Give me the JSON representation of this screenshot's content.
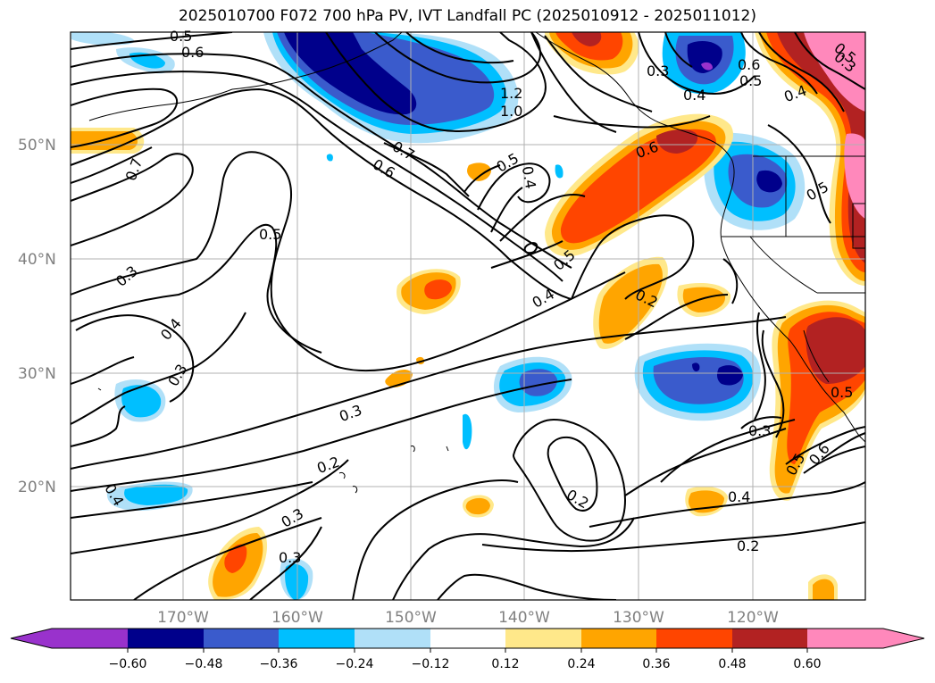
{
  "title": "2025010700 F072 700 hPa PV, IVT Landfall PC (2025010912 - 2025011012)",
  "map": {
    "lat_labels": [
      "50°N",
      "40°N",
      "30°N",
      "20°N"
    ],
    "lon_labels": [
      "170°W",
      "160°W",
      "150°W",
      "140°W",
      "130°W",
      "120°W"
    ],
    "contour_labels": [
      "0.5",
      "0.6",
      "1.2",
      "1.0",
      "0.7",
      "0.6",
      "0.5",
      "0.4",
      "0.3",
      "0.6",
      "0.5",
      "0.4",
      "0.5",
      "0.7",
      "0.5",
      "0.5",
      "0.3",
      "0.4",
      "0.3",
      "0.6",
      "0.4",
      "0.2",
      "0.5",
      "0.3",
      "0.3",
      "0.2",
      "0.2",
      "0.4",
      "0.2",
      "0.3",
      "0.4",
      "0.3",
      "0.6",
      "0.5",
      "0.5",
      "0.4",
      "0.3"
    ],
    "colors": {
      "land_outline": "#000000",
      "grid": "#b0b0b0",
      "contour": "#000000"
    }
  },
  "colorbar": {
    "ticks": [
      "−0.60",
      "−0.48",
      "−0.36",
      "−0.24",
      "−0.12",
      "0.12",
      "0.24",
      "0.36",
      "0.48",
      "0.60"
    ],
    "colors": [
      "#9932cc",
      "#00008b",
      "#3a5bcc",
      "#00bfff",
      "#b0e0f8",
      "#ffffff",
      "#ffe88a",
      "#ffa500",
      "#ff4500",
      "#b22222",
      "#ff88bb"
    ]
  }
}
